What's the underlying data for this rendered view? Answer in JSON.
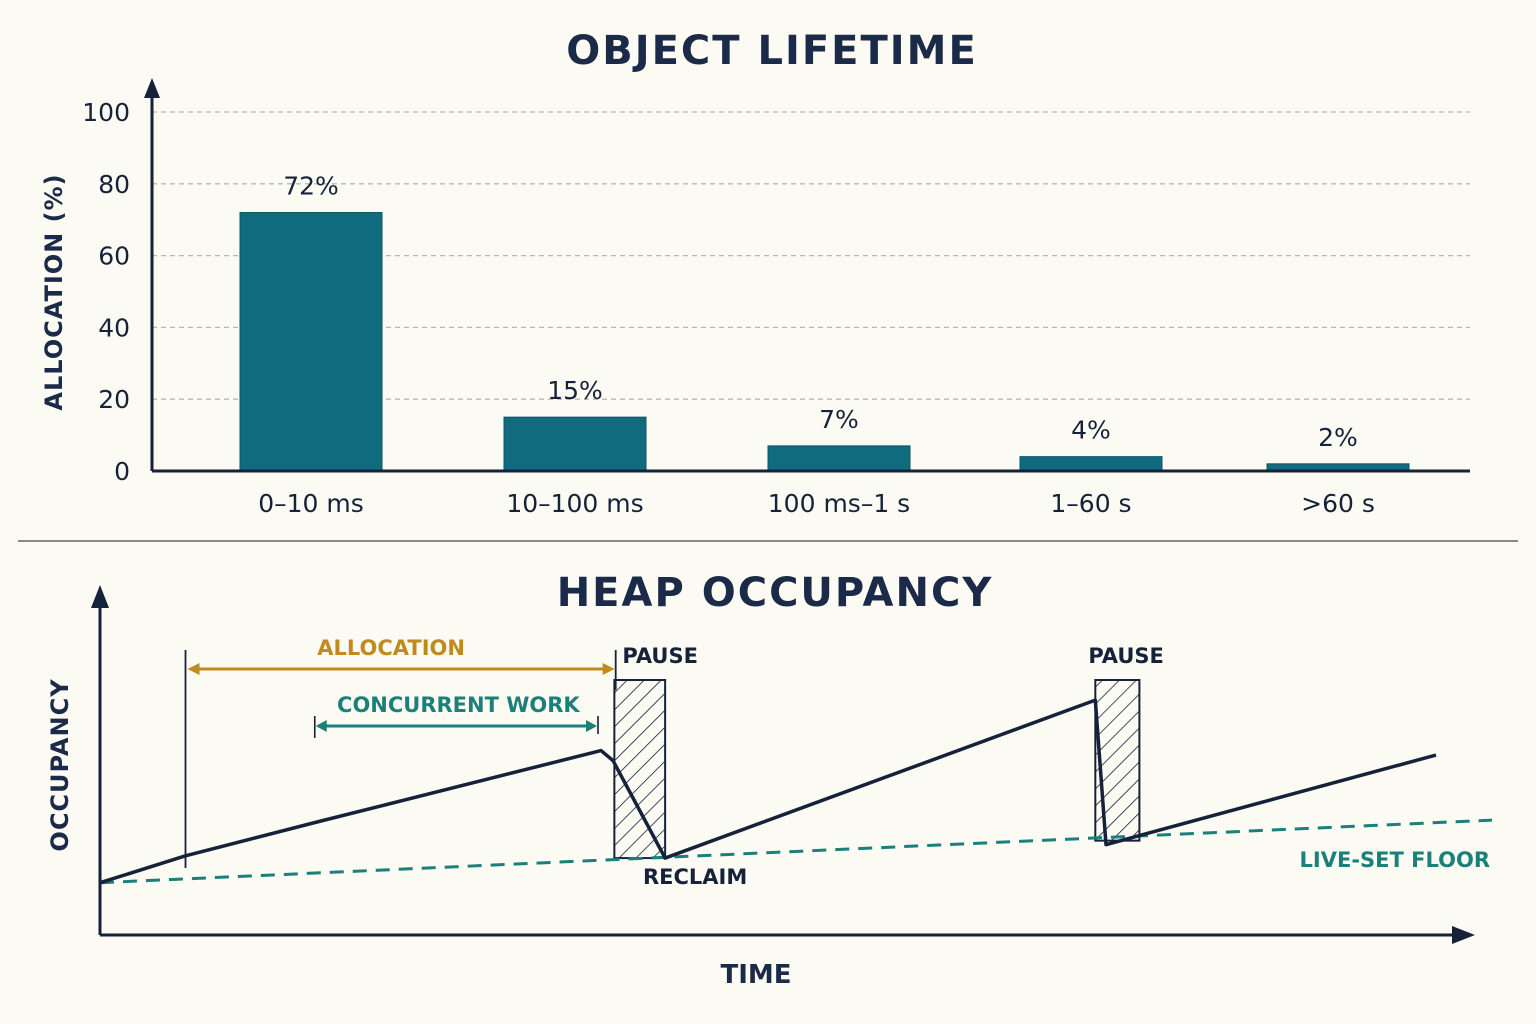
{
  "chart_data": [
    {
      "type": "bar",
      "title": "OBJECT LIFETIME",
      "xlabel": "",
      "ylabel": "ALLOCATION (%)",
      "ylim": [
        0,
        100
      ],
      "yticks": [
        "0",
        "20",
        "40",
        "60",
        "80",
        "100"
      ],
      "grid": true,
      "categories": [
        "0–10 ms",
        "10–100 ms",
        "100 ms–1 s",
        "1–60 s",
        ">60 s"
      ],
      "values": [
        72,
        15,
        7,
        4,
        2
      ],
      "data_labels": [
        "72%",
        "15%",
        "7%",
        "4%",
        "2%"
      ],
      "colors": {
        "bar": "#0f6b7d",
        "axis": "#16213a",
        "grid": "#b9b9b0"
      }
    },
    {
      "type": "line",
      "title": "HEAP OCCUPANCY",
      "xlabel": "TIME",
      "ylabel": "OCCUPANCY",
      "xlim": [
        0,
        100
      ],
      "ylim": [
        0,
        100
      ],
      "series": [
        {
          "x": [
            0,
            6.4,
            16.5,
            37.5,
            38.4,
            42.3,
            74.5,
            75.3,
            100
          ],
          "y": [
            9.5,
            21.5,
            37,
            68.5,
            64,
            20.5,
            91,
            26.5,
            66.5
          ]
        }
      ],
      "live_set_floor": {
        "label": "LIVE-SET FLOOR",
        "x": [
          0,
          100
        ],
        "y": [
          9.5,
          37
        ]
      },
      "annotations": {
        "allocation": {
          "label": "ALLOCATION",
          "x": [
            6.4,
            38.3
          ]
        },
        "concurrent_work": {
          "label": "CONCURRENT WORK",
          "x": [
            16.0,
            37.2
          ]
        },
        "pauses": [
          {
            "label": "PAUSE",
            "x": [
              38.5,
              42.3
            ]
          },
          {
            "label": "PAUSE",
            "x": [
              74.5,
              77.8
            ]
          }
        ],
        "reclaim": {
          "label": "RECLAIM",
          "x": 42.3,
          "y": 20.5
        }
      },
      "colors": {
        "line": "#16213a",
        "floor": "#1b7f7a",
        "allocation": "#c08a1e",
        "concurrent": "#1b7f7a"
      }
    }
  ]
}
